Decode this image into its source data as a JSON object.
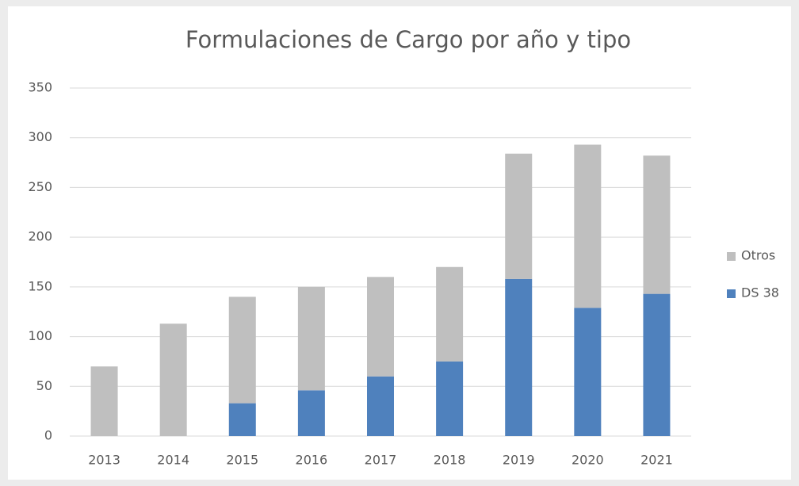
{
  "chart_data": {
    "type": "stacked_bar",
    "title": "Formulaciones de Cargo por año y tipo",
    "categories": [
      "2013",
      "2014",
      "2015",
      "2016",
      "2017",
      "2018",
      "2019",
      "2020",
      "2021"
    ],
    "series": [
      {
        "name": "DS 38",
        "color": "#4f81bd",
        "values": [
          0,
          0,
          33,
          46,
          60,
          75,
          158,
          129,
          143
        ]
      },
      {
        "name": "Otros",
        "color": "#bfbfbf",
        "values": [
          70,
          113,
          107,
          104,
          100,
          95,
          126,
          164,
          139
        ]
      }
    ],
    "ylim": [
      0,
      350
    ],
    "yticks": [
      0,
      50,
      100,
      150,
      200,
      250,
      300,
      350
    ],
    "grid": true,
    "legend": "right"
  }
}
